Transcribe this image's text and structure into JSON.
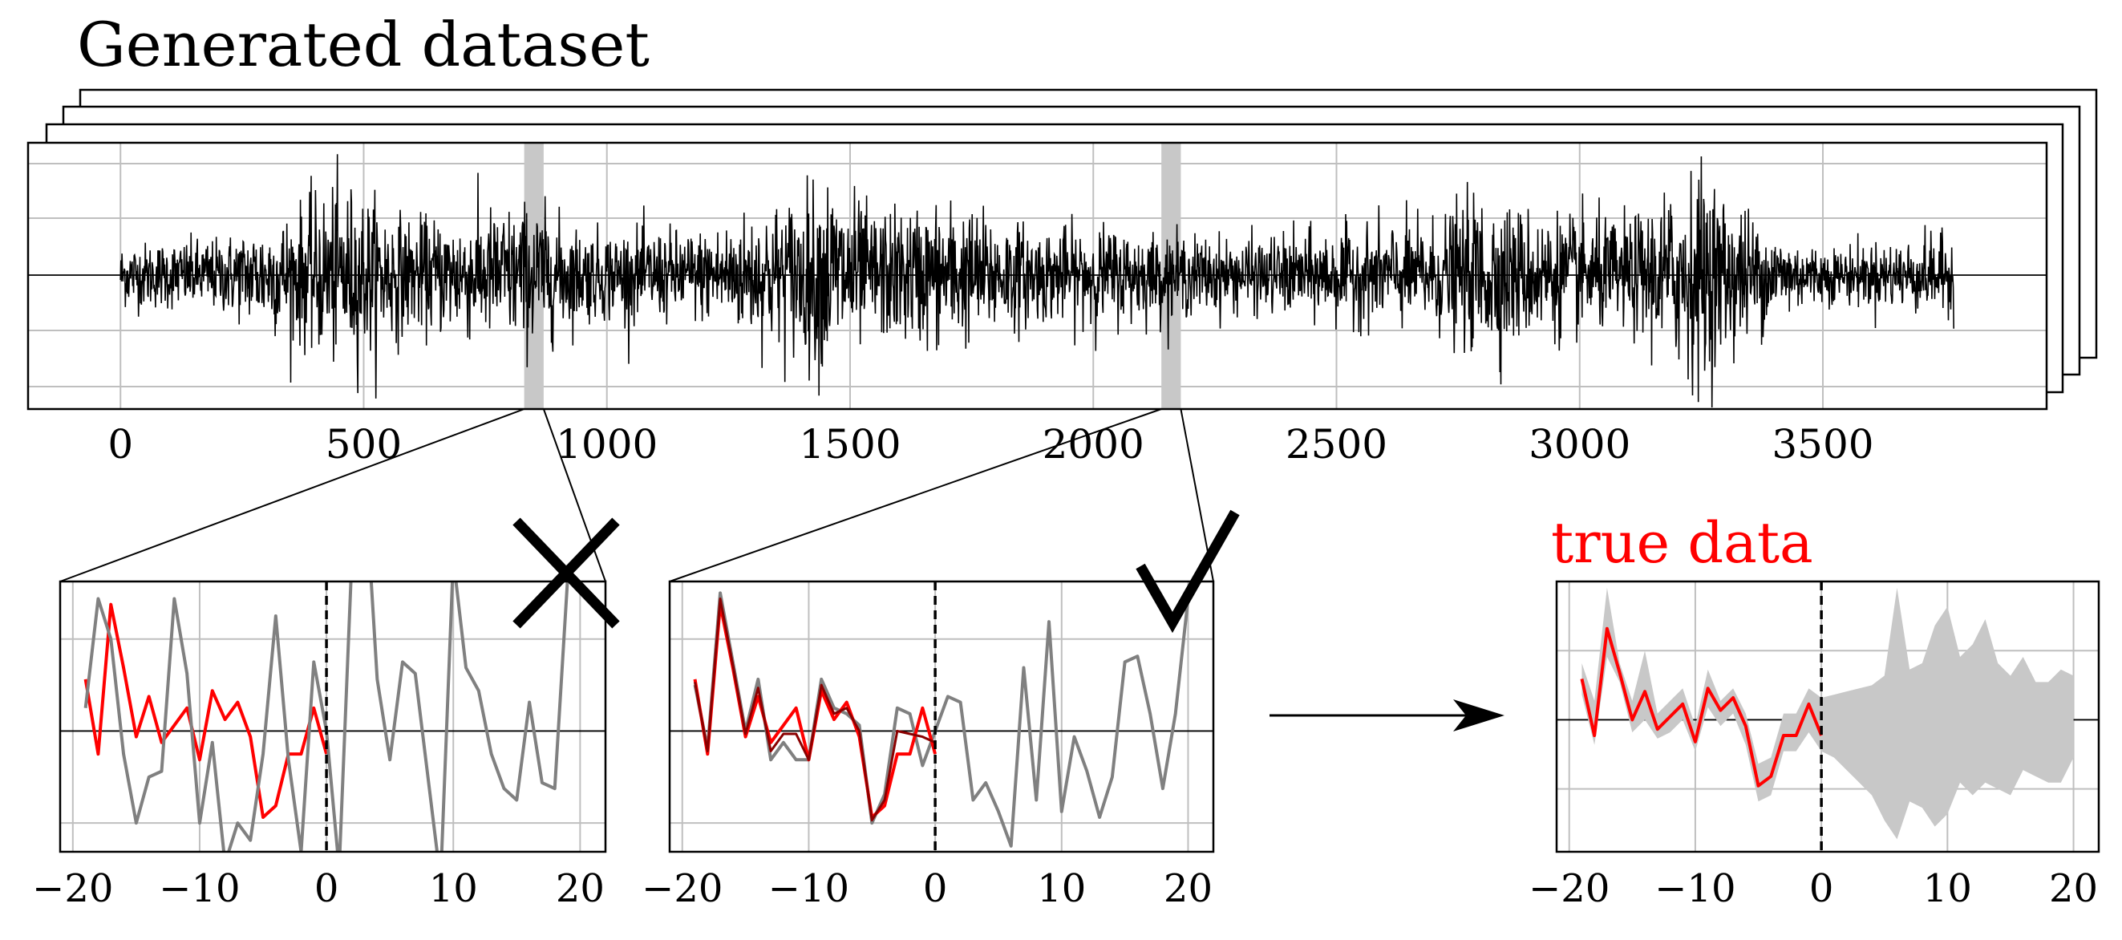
{
  "title": "Generated dataset",
  "colors": {
    "true_data": "#ff0000",
    "sample_line": "#808080",
    "band": "#c8c8c8",
    "ink": "#000000",
    "grid": "#bfbfbf"
  },
  "main_plot": {
    "xticks": [
      "0",
      "500",
      "1000",
      "1500",
      "2000",
      "2500",
      "3000",
      "3500"
    ],
    "xlim": [
      -190,
      3960
    ],
    "series_length": 3770,
    "highlight_windows_center": [
      850,
      2160
    ],
    "highlight_windows_halfwidth": 20,
    "envelope_note": "volatility clusters",
    "envelope": {
      "x": [
        0,
        200,
        350,
        450,
        500,
        600,
        850,
        950,
        1200,
        1400,
        1450,
        1550,
        1700,
        1900,
        2000,
        2150,
        2300,
        2500,
        2700,
        2800,
        2900,
        3100,
        3200,
        3250,
        3300,
        3400,
        3500,
        3600,
        3770
      ],
      "amp": [
        0.35,
        0.4,
        0.7,
        1.0,
        0.9,
        0.6,
        0.8,
        0.5,
        0.5,
        0.9,
        1.1,
        0.7,
        0.8,
        0.5,
        0.55,
        0.45,
        0.4,
        0.5,
        0.6,
        0.9,
        0.7,
        0.6,
        1.0,
        1.2,
        0.9,
        0.5,
        0.3,
        0.35,
        0.45
      ]
    }
  },
  "panels": [
    {
      "id": "rejected",
      "mark": "cross",
      "xticks": [
        "−20",
        "−10",
        "0",
        "10",
        "20"
      ],
      "xlim": [
        -21,
        22
      ],
      "ylim": [
        -2.1,
        2.6
      ],
      "yticks_at": [
        -1.6,
        1.6
      ],
      "true_x": [
        -19,
        -18,
        -17,
        -16,
        -15,
        -14,
        -13,
        -12,
        -11,
        -10,
        -9,
        -8,
        -7,
        -6,
        -5,
        -4,
        -3,
        -2,
        -1,
        0
      ],
      "true_y": [
        0.9,
        -0.4,
        2.2,
        1.1,
        -0.1,
        0.6,
        -0.2,
        0.1,
        0.4,
        -0.5,
        0.7,
        0.2,
        0.5,
        -0.1,
        -1.5,
        -1.3,
        -0.4,
        -0.4,
        0.4,
        -0.4
      ],
      "gray_x": [
        -19,
        -18,
        -17,
        -16,
        -15,
        -14,
        -13,
        -12,
        -11,
        -10,
        -9,
        -8,
        -7,
        -6,
        -5,
        -4,
        -3,
        -2,
        -1,
        0,
        1,
        2,
        3,
        4,
        5,
        6,
        7,
        8,
        9,
        10,
        11,
        12,
        13,
        14,
        15,
        16,
        17,
        18,
        19,
        20,
        21
      ],
      "gray_y": [
        0.4,
        2.3,
        1.6,
        -0.4,
        -1.6,
        -0.8,
        -0.7,
        2.3,
        1.0,
        -1.6,
        -0.2,
        -2.3,
        -1.6,
        -1.9,
        -0.4,
        2.0,
        -0.5,
        -2.1,
        1.2,
        0.0,
        -2.4,
        3.0,
        4.5,
        0.9,
        -0.5,
        1.2,
        1.0,
        -0.8,
        -2.6,
        3.0,
        1.1,
        0.7,
        -0.4,
        -1.0,
        -1.2,
        0.5,
        -0.9,
        -1.0,
        2.6,
        3.0,
        3.0
      ]
    },
    {
      "id": "accepted",
      "mark": "check",
      "xticks": [
        "−20",
        "−10",
        "0",
        "10",
        "20"
      ],
      "xlim": [
        -21,
        22
      ],
      "ylim": [
        -2.1,
        2.6
      ],
      "yticks_at": [
        -1.6,
        1.6
      ],
      "true_x": [
        -19,
        -18,
        -17,
        -16,
        -15,
        -14,
        -13,
        -12,
        -11,
        -10,
        -9,
        -8,
        -7,
        -6,
        -5,
        -4,
        -3,
        -2,
        -1,
        0
      ],
      "true_y": [
        0.9,
        -0.4,
        2.2,
        1.1,
        -0.1,
        0.6,
        -0.2,
        0.1,
        0.4,
        -0.5,
        0.7,
        0.2,
        0.5,
        -0.1,
        -1.5,
        -1.3,
        -0.4,
        -0.4,
        0.4,
        -0.4
      ],
      "gray_x": [
        -19,
        -18,
        -17,
        -16,
        -15,
        -14,
        -13,
        -12,
        -11,
        -10,
        -9,
        -8,
        -7,
        -6,
        -5,
        -4,
        -3,
        -2,
        -1,
        0,
        1,
        2,
        3,
        4,
        5,
        6,
        7,
        8,
        9,
        10,
        11,
        12,
        13,
        14,
        15,
        16,
        17,
        18,
        19,
        20
      ],
      "gray_y": [
        0.8,
        -0.3,
        2.4,
        1.2,
        0.0,
        0.9,
        -0.5,
        -0.2,
        -0.5,
        -0.5,
        0.9,
        0.4,
        0.3,
        0.1,
        -1.6,
        -1.1,
        0.4,
        0.3,
        -0.6,
        0.0,
        0.6,
        0.5,
        -1.2,
        -0.9,
        -1.4,
        -2.0,
        1.1,
        -1.2,
        1.9,
        -1.4,
        -0.1,
        -0.7,
        -1.5,
        -0.8,
        1.2,
        1.3,
        0.3,
        -1.0,
        0.3,
        2.3
      ]
    }
  ],
  "arrow": {
    "label": ""
  },
  "result_panel": {
    "label": "true data",
    "xticks": [
      "−20",
      "−10",
      "0",
      "10",
      "20"
    ],
    "xlim": [
      -21,
      22
    ],
    "ylim": [
      -2.1,
      2.2
    ],
    "yticks_at": [
      -1.1,
      1.1
    ],
    "true_x": [
      -19,
      -18,
      -17,
      -16,
      -15,
      -14,
      -13,
      -12,
      -11,
      -10,
      -9,
      -8,
      -7,
      -6,
      -5,
      -4,
      -3,
      -2,
      -1,
      0
    ],
    "true_y": [
      0.65,
      -0.25,
      1.45,
      0.75,
      0.0,
      0.45,
      -0.15,
      0.05,
      0.25,
      -0.35,
      0.5,
      0.15,
      0.35,
      -0.1,
      -1.05,
      -0.9,
      -0.25,
      -0.25,
      0.25,
      -0.25
    ],
    "band_x": [
      -19,
      -18,
      -17,
      -16,
      -15,
      -14,
      -13,
      -12,
      -11,
      -10,
      -9,
      -8,
      -7,
      -6,
      -5,
      -4,
      -3,
      -2,
      -1,
      0,
      1,
      2,
      3,
      4,
      5,
      6,
      7,
      8,
      9,
      10,
      11,
      12,
      13,
      14,
      15,
      16,
      17,
      18,
      19,
      20
    ],
    "band_upper": [
      0.9,
      0.3,
      2.1,
      0.9,
      0.3,
      1.1,
      0.1,
      0.3,
      0.5,
      -0.1,
      0.8,
      0.3,
      0.5,
      0.1,
      -0.7,
      -0.6,
      0.1,
      0.1,
      0.5,
      0.35,
      0.4,
      0.45,
      0.5,
      0.55,
      0.7,
      2.1,
      0.8,
      0.9,
      1.5,
      1.8,
      1.0,
      1.2,
      1.6,
      0.9,
      0.7,
      1.0,
      0.6,
      0.6,
      0.8,
      0.7
    ],
    "band_lower": [
      0.4,
      -0.4,
      1.0,
      0.6,
      -0.2,
      0.0,
      -0.3,
      -0.2,
      0.0,
      -0.5,
      0.2,
      -0.1,
      0.1,
      -0.4,
      -1.3,
      -1.2,
      -0.5,
      -0.5,
      -0.2,
      -0.5,
      -0.6,
      -0.8,
      -1.0,
      -1.2,
      -1.6,
      -1.9,
      -1.3,
      -1.4,
      -1.7,
      -1.5,
      -1.0,
      -1.2,
      -1.0,
      -1.1,
      -1.2,
      -0.8,
      -0.9,
      -1.0,
      -1.0,
      -0.6
    ]
  }
}
